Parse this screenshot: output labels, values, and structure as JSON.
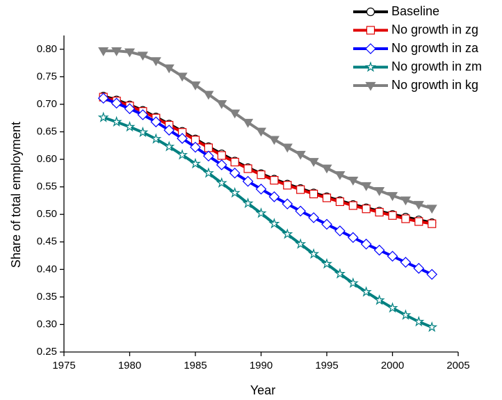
{
  "chart_data": {
    "type": "line",
    "x_label": "Year",
    "y_label": "Share of total employment",
    "x": [
      1978,
      1979,
      1980,
      1981,
      1982,
      1983,
      1984,
      1985,
      1986,
      1987,
      1988,
      1989,
      1990,
      1991,
      1992,
      1993,
      1994,
      1995,
      1996,
      1997,
      1998,
      1999,
      2000,
      2001,
      2002,
      2003
    ],
    "series": [
      {
        "name": "Baseline",
        "color": "#000000",
        "marker": "circle",
        "values": [
          0.715,
          0.708,
          0.699,
          0.689,
          0.677,
          0.664,
          0.651,
          0.637,
          0.623,
          0.61,
          0.597,
          0.585,
          0.574,
          0.564,
          0.555,
          0.547,
          0.539,
          0.532,
          0.525,
          0.518,
          0.512,
          0.506,
          0.5,
          0.495,
          0.49,
          0.485
        ]
      },
      {
        "name": "No growth in zg",
        "color": "#e00000",
        "marker": "square",
        "values": [
          0.713,
          0.706,
          0.697,
          0.687,
          0.675,
          0.662,
          0.649,
          0.635,
          0.621,
          0.607,
          0.595,
          0.583,
          0.572,
          0.562,
          0.553,
          0.545,
          0.537,
          0.53,
          0.523,
          0.516,
          0.51,
          0.504,
          0.498,
          0.492,
          0.487,
          0.483
        ]
      },
      {
        "name": "No growth in za",
        "color": "#0000ff",
        "marker": "diamond",
        "values": [
          0.711,
          0.702,
          0.692,
          0.681,
          0.668,
          0.653,
          0.638,
          0.622,
          0.606,
          0.59,
          0.575,
          0.56,
          0.546,
          0.532,
          0.519,
          0.506,
          0.494,
          0.482,
          0.47,
          0.458,
          0.446,
          0.435,
          0.424,
          0.413,
          0.402,
          0.391
        ]
      },
      {
        "name": "No growth in zm",
        "color": "#008080",
        "marker": "star",
        "values": [
          0.676,
          0.668,
          0.659,
          0.649,
          0.637,
          0.623,
          0.608,
          0.592,
          0.575,
          0.557,
          0.539,
          0.52,
          0.502,
          0.483,
          0.464,
          0.446,
          0.428,
          0.41,
          0.392,
          0.375,
          0.359,
          0.344,
          0.33,
          0.317,
          0.305,
          0.295
        ]
      },
      {
        "name": "No growth in kg",
        "color": "#808080",
        "marker": "triangle-down",
        "values": [
          0.797,
          0.797,
          0.795,
          0.789,
          0.779,
          0.766,
          0.751,
          0.735,
          0.718,
          0.701,
          0.684,
          0.667,
          0.651,
          0.636,
          0.622,
          0.609,
          0.596,
          0.584,
          0.572,
          0.562,
          0.552,
          0.543,
          0.534,
          0.526,
          0.518,
          0.511
        ]
      }
    ],
    "xlim": [
      1975,
      2005
    ],
    "xticks": [
      1975,
      1980,
      1985,
      1990,
      1995,
      2000,
      2005
    ],
    "ylim": [
      0.25,
      0.825
    ],
    "yticks": [
      0.25,
      {
        "value": 0.3,
        "label": "0.30"
      },
      0.35,
      {
        "value": 0.4,
        "label": "0.40"
      },
      0.45,
      {
        "value": 0.5,
        "label": "0.50"
      },
      0.55,
      {
        "value": 0.6,
        "label": "0.60"
      },
      0.65,
      {
        "value": 0.7,
        "label": "0.70"
      },
      0.75,
      {
        "value": 0.8,
        "label": "0.80"
      }
    ],
    "legend": "top-right",
    "grid": false
  }
}
